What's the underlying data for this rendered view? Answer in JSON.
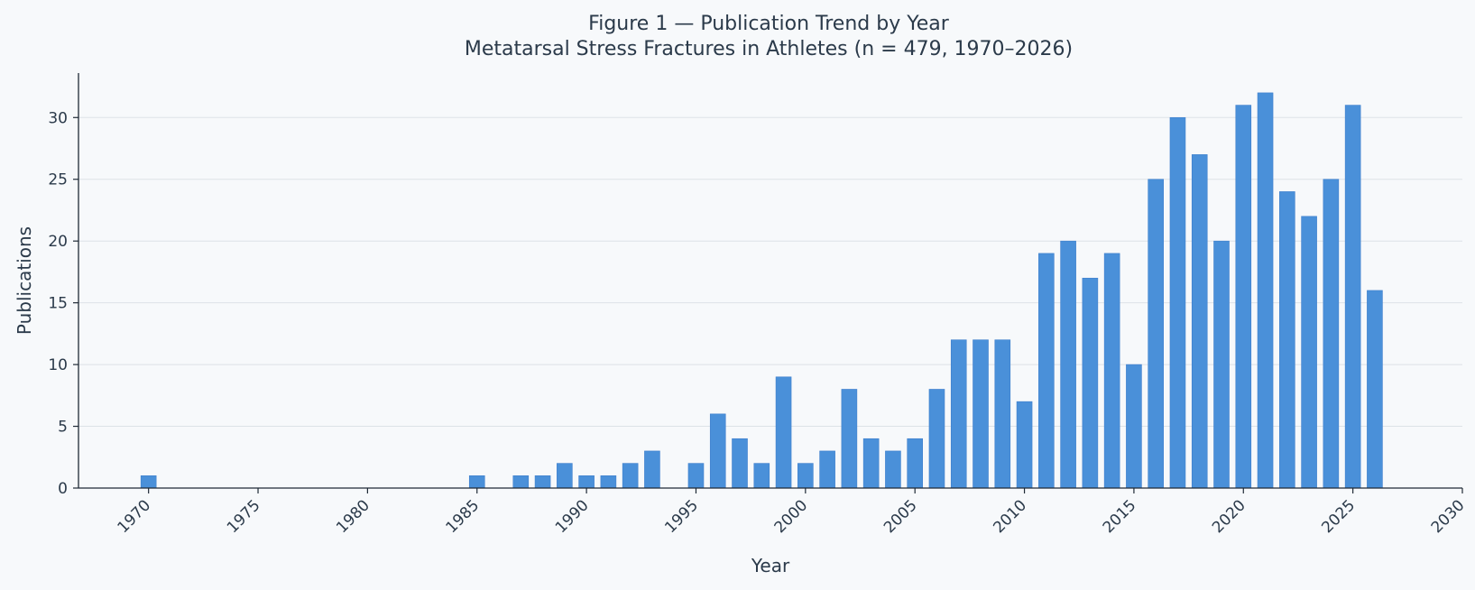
{
  "chart_data": {
    "type": "bar",
    "title": "Figure 1 — Publication Trend by Year",
    "subtitle": "Metatarsal Stress Fractures in Athletes (n = 479, 1970–2026)",
    "xlabel": "Year",
    "ylabel": "Publications",
    "xlim": [
      1966.8,
      2030
    ],
    "ylim": [
      0,
      33.6
    ],
    "x_ticks": [
      1970,
      1975,
      1980,
      1985,
      1990,
      1995,
      2000,
      2005,
      2010,
      2015,
      2020,
      2025,
      2030
    ],
    "y_ticks": [
      0,
      5,
      10,
      15,
      20,
      25,
      30
    ],
    "grid": "horizontal",
    "bar_color": "#4a90d9",
    "x": [
      1970,
      1985,
      1987,
      1988,
      1989,
      1990,
      1991,
      1992,
      1993,
      1995,
      1996,
      1997,
      1998,
      1999,
      2000,
      2001,
      2002,
      2003,
      2004,
      2005,
      2006,
      2007,
      2008,
      2009,
      2010,
      2011,
      2012,
      2013,
      2014,
      2015,
      2016,
      2017,
      2018,
      2019,
      2020,
      2021,
      2022,
      2023,
      2024,
      2025,
      2026
    ],
    "values": [
      1,
      1,
      1,
      1,
      2,
      1,
      1,
      2,
      3,
      2,
      6,
      4,
      2,
      9,
      2,
      3,
      8,
      4,
      3,
      4,
      8,
      12,
      12,
      12,
      7,
      19,
      20,
      17,
      19,
      10,
      25,
      30,
      27,
      20,
      31,
      32,
      24,
      22,
      25,
      31,
      16
    ]
  }
}
